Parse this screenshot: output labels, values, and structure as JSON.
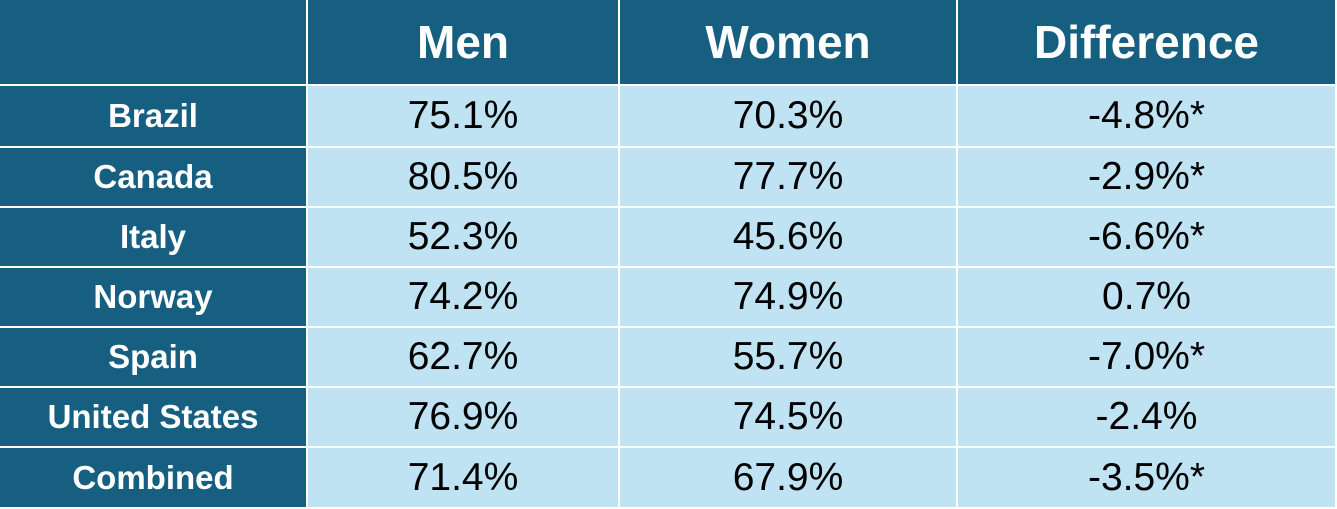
{
  "table": {
    "header": [
      "Men",
      "Women",
      "Difference"
    ],
    "rows": [
      [
        "Brazil",
        "75.1%",
        "70.3%",
        "-4.8%*"
      ],
      [
        "Canada",
        "80.5%",
        "77.7%",
        "-2.9%*"
      ],
      [
        "Italy",
        "52.3%",
        "45.6%",
        "-6.6%*"
      ],
      [
        "Norway",
        "74.2%",
        "74.9%",
        "0.7%"
      ],
      [
        "Spain",
        "62.7%",
        "55.7%",
        "-7.0%*"
      ],
      [
        "United States",
        "76.9%",
        "74.5%",
        "-2.4%"
      ],
      [
        "Combined",
        "71.4%",
        "67.9%",
        "-3.5%*"
      ]
    ]
  }
}
